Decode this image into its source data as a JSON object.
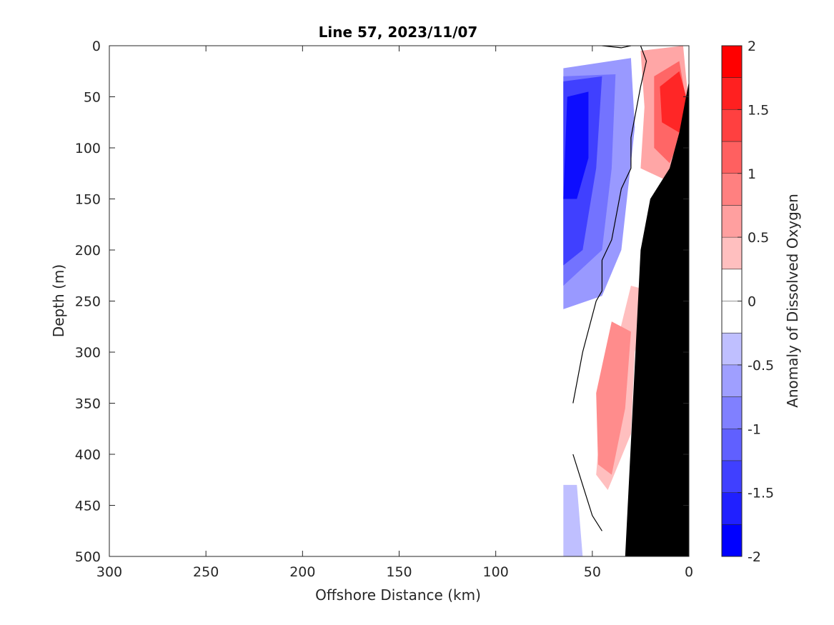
{
  "chart_data": {
    "type": "heatmap",
    "title": "Line 57, 2023/11/07",
    "xlabel": "Offshore Distance (km)",
    "ylabel": "Depth (m)",
    "xlim": [
      300,
      0
    ],
    "ylim": [
      500,
      0
    ],
    "x_reversed": true,
    "y_reversed": true,
    "x_ticks": [
      "300",
      "250",
      "200",
      "150",
      "100",
      "50",
      "0"
    ],
    "y_ticks": [
      "0",
      "50",
      "100",
      "150",
      "200",
      "250",
      "300",
      "350",
      "400",
      "450",
      "500"
    ],
    "colorbar": {
      "label": "Anomaly of Dissolved Oxygen",
      "range": [
        -2,
        2
      ],
      "step": 0.25,
      "ticks": [
        "2",
        "1.5",
        "1",
        "0.5",
        "0",
        "-0.5",
        "-1",
        "-1.5",
        "-2"
      ],
      "low_color": "#0000ff",
      "mid_color": "#ffffff",
      "high_color": "#ff0000"
    },
    "fields": [
      {
        "sign": "negative",
        "level": 0.4,
        "polygon": [
          [
            65,
            22
          ],
          [
            30,
            12
          ],
          [
            28,
            80
          ],
          [
            35,
            200
          ],
          [
            45,
            245
          ],
          [
            65,
            258
          ]
        ]
      },
      {
        "sign": "negative",
        "level": 0.55,
        "polygon": [
          [
            65,
            30
          ],
          [
            38,
            28
          ],
          [
            40,
            120
          ],
          [
            45,
            200
          ],
          [
            65,
            235
          ]
        ]
      },
      {
        "sign": "negative",
        "level": 0.75,
        "polygon": [
          [
            65,
            35
          ],
          [
            45,
            30
          ],
          [
            48,
            120
          ],
          [
            55,
            200
          ],
          [
            65,
            215
          ]
        ]
      },
      {
        "sign": "negative",
        "level": 0.95,
        "polygon": [
          [
            63,
            50
          ],
          [
            52,
            45
          ],
          [
            52,
            110
          ],
          [
            58,
            150
          ],
          [
            65,
            150
          ]
        ]
      },
      {
        "sign": "negative",
        "level": 0.25,
        "polygon": [
          [
            58,
            430
          ],
          [
            65,
            430
          ],
          [
            65,
            500
          ],
          [
            55,
            500
          ]
        ]
      },
      {
        "sign": "positive",
        "level": 0.35,
        "polygon": [
          [
            3,
            0
          ],
          [
            25,
            5
          ],
          [
            23,
            60
          ],
          [
            25,
            120
          ],
          [
            8,
            135
          ],
          [
            0,
            60
          ]
        ]
      },
      {
        "sign": "positive",
        "level": 0.6,
        "polygon": [
          [
            5,
            15
          ],
          [
            18,
            30
          ],
          [
            18,
            100
          ],
          [
            10,
            115
          ],
          [
            0,
            70
          ]
        ]
      },
      {
        "sign": "positive",
        "level": 0.85,
        "polygon": [
          [
            5,
            25
          ],
          [
            15,
            40
          ],
          [
            14,
            75
          ],
          [
            5,
            85
          ],
          [
            0,
            60
          ]
        ]
      },
      {
        "sign": "positive",
        "level": 0.25,
        "polygon": [
          [
            30,
            235
          ],
          [
            20,
            240
          ],
          [
            28,
            300
          ],
          [
            30,
            380
          ],
          [
            42,
            435
          ],
          [
            48,
            420
          ],
          [
            45,
            350
          ]
        ]
      },
      {
        "sign": "positive",
        "level": 0.45,
        "polygon": [
          [
            40,
            270
          ],
          [
            30,
            280
          ],
          [
            33,
            355
          ],
          [
            40,
            420
          ],
          [
            47,
            410
          ],
          [
            48,
            340
          ]
        ]
      }
    ],
    "zero_contours": [
      [
        [
          25,
          0
        ],
        [
          22,
          15
        ],
        [
          25,
          40
        ],
        [
          30,
          90
        ],
        [
          30,
          120
        ],
        [
          35,
          140
        ],
        [
          40,
          190
        ],
        [
          45,
          210
        ],
        [
          45,
          240
        ]
      ],
      [
        [
          45,
          240
        ],
        [
          48,
          250
        ],
        [
          55,
          300
        ],
        [
          60,
          350
        ]
      ],
      [
        [
          60,
          400
        ],
        [
          55,
          430
        ],
        [
          50,
          460
        ],
        [
          45,
          475
        ]
      ],
      [
        [
          45,
          0
        ],
        [
          35,
          2
        ],
        [
          30,
          0
        ]
      ]
    ],
    "bathymetry": [
      [
        0,
        35
      ],
      [
        5,
        85
      ],
      [
        10,
        120
      ],
      [
        20,
        150
      ],
      [
        25,
        200
      ],
      [
        33,
        500
      ],
      [
        0,
        500
      ]
    ]
  }
}
